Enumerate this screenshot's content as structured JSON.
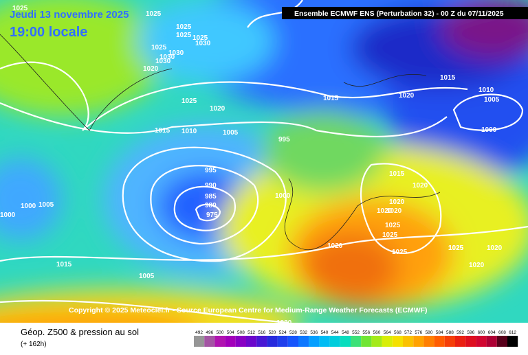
{
  "header": {
    "date": "Jeudi 13 novembre 2025",
    "time": "19:00 locale",
    "run": "Ensemble ECMWF ENS  (Perturbation 32)  -  00 Z du 07/11/2025"
  },
  "copyright": "Copyright © 2025 Meteociel.fr - Source European Centre for Medium-Range Weather Forecasts (ECMWF)",
  "footer": {
    "title": "Géop. Z500 & pression au sol",
    "lead": "(+ 162h)"
  },
  "isobar_labels": [
    "1025",
    "1025",
    "1025",
    "1025",
    "1025",
    "1030",
    "1025",
    "1030",
    "1030",
    "1020",
    "1030",
    "1025",
    "1020",
    "1015",
    "1010",
    "1005",
    "995",
    "1015",
    "1020",
    "1015",
    "1010",
    "1005",
    "1000",
    "995",
    "990",
    "985",
    "980",
    "975",
    "1000",
    "1005",
    "1000",
    "1015",
    "1020",
    "1020",
    "1020",
    "1020",
    "1025",
    "1025",
    "1025",
    "1025",
    "1020",
    "1025",
    "1020",
    "1020",
    "1015",
    "1005",
    "1020",
    "1000"
  ],
  "scale_labels": [
    "492",
    "496",
    "500",
    "504",
    "508",
    "512",
    "516",
    "520",
    "524",
    "528",
    "532",
    "536",
    "540",
    "544",
    "548",
    "552",
    "556",
    "560",
    "564",
    "568",
    "572",
    "576",
    "580",
    "584",
    "588",
    "592",
    "596",
    "600",
    "604",
    "608",
    "612"
  ]
}
